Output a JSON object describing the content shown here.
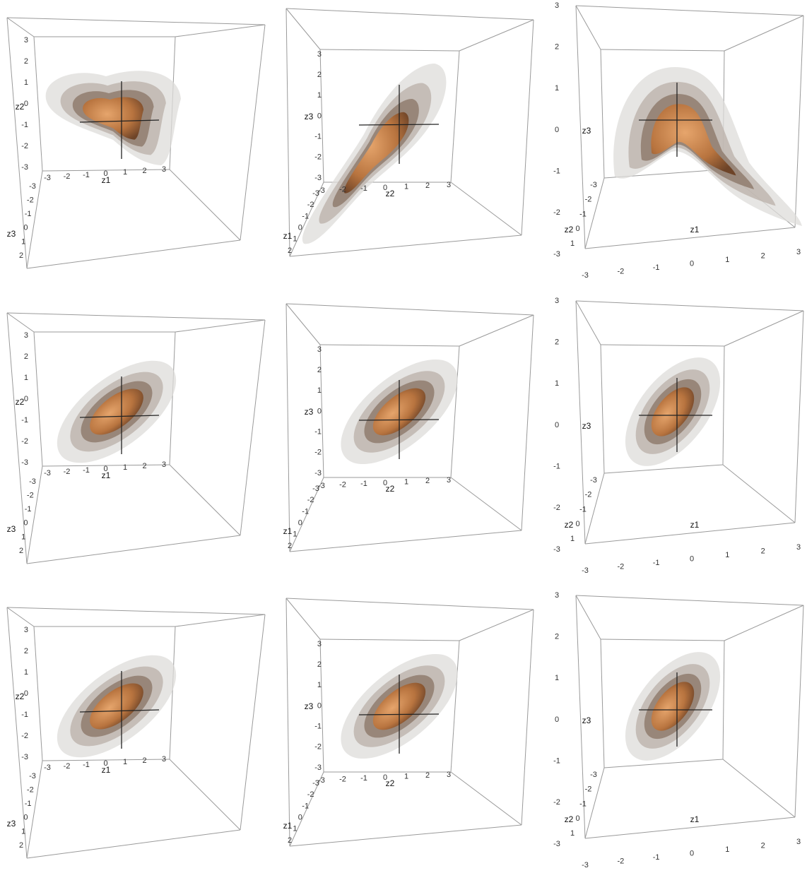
{
  "panels": [
    {
      "vertical_axis": {
        "label": "z2",
        "ticks": [
          -3,
          -2,
          -1,
          0,
          1,
          2,
          3
        ]
      },
      "horizontal_axis": {
        "label": "z1",
        "ticks": [
          -3,
          -2,
          -1,
          0,
          1,
          2,
          3
        ]
      },
      "depth_axis": {
        "label": "z3",
        "ticks": [
          -3,
          -2,
          -1,
          0,
          1,
          2
        ]
      }
    },
    {
      "vertical_axis": {
        "label": "z3",
        "ticks": [
          -3,
          -2,
          -1,
          0,
          1,
          2,
          3
        ]
      },
      "horizontal_axis": {
        "label": "z2",
        "ticks": [
          -3,
          -2,
          -1,
          0,
          1,
          2,
          3
        ]
      },
      "depth_axis": {
        "label": "z1",
        "ticks": [
          -3,
          -2,
          -1,
          0,
          1,
          2
        ]
      }
    },
    {
      "vertical_axis": {
        "label": "z3",
        "ticks": [
          -3,
          -2,
          -1,
          0,
          1,
          2,
          3
        ]
      },
      "horizontal_axis": {
        "label": "z1",
        "ticks": [
          -3,
          -2,
          -1,
          0,
          1,
          2,
          3
        ]
      },
      "depth_axis": {
        "label": "z2",
        "ticks": [
          -3,
          -2,
          -1,
          0,
          1
        ]
      }
    },
    {
      "vertical_axis": {
        "label": "z2",
        "ticks": [
          -3,
          -2,
          -1,
          0,
          1,
          2,
          3
        ]
      },
      "horizontal_axis": {
        "label": "z1",
        "ticks": [
          -3,
          -2,
          -1,
          0,
          1,
          2,
          3
        ]
      },
      "depth_axis": {
        "label": "z3",
        "ticks": [
          -3,
          -2,
          -1,
          0,
          1,
          2
        ]
      }
    },
    {
      "vertical_axis": {
        "label": "z3",
        "ticks": [
          -3,
          -2,
          -1,
          0,
          1,
          2,
          3
        ]
      },
      "horizontal_axis": {
        "label": "z2",
        "ticks": [
          -3,
          -2,
          -1,
          0,
          1,
          2,
          3
        ]
      },
      "depth_axis": {
        "label": "z1",
        "ticks": [
          -3,
          -2,
          -1,
          0,
          1,
          2
        ]
      }
    },
    {
      "vertical_axis": {
        "label": "z3",
        "ticks": [
          -3,
          -2,
          -1,
          0,
          1,
          2,
          3
        ]
      },
      "horizontal_axis": {
        "label": "z1",
        "ticks": [
          -3,
          -2,
          -1,
          0,
          1,
          2,
          3
        ]
      },
      "depth_axis": {
        "label": "z2",
        "ticks": [
          -3,
          -2,
          -1,
          0,
          1
        ]
      }
    },
    {
      "vertical_axis": {
        "label": "z2",
        "ticks": [
          -3,
          -2,
          -1,
          0,
          1,
          2,
          3
        ]
      },
      "horizontal_axis": {
        "label": "z1",
        "ticks": [
          -3,
          -2,
          -1,
          0,
          1,
          2,
          3
        ]
      },
      "depth_axis": {
        "label": "z3",
        "ticks": [
          -3,
          -2,
          -1,
          0,
          1,
          2
        ]
      }
    },
    {
      "vertical_axis": {
        "label": "z3",
        "ticks": [
          -3,
          -2,
          -1,
          0,
          1,
          2,
          3
        ]
      },
      "horizontal_axis": {
        "label": "z2",
        "ticks": [
          -3,
          -2,
          -1,
          0,
          1,
          2,
          3
        ]
      },
      "depth_axis": {
        "label": "z1",
        "ticks": [
          -3,
          -2,
          -1,
          0,
          1,
          2
        ]
      }
    },
    {
      "vertical_axis": {
        "label": "z3",
        "ticks": [
          -3,
          -2,
          -1,
          0,
          1,
          2,
          3
        ]
      },
      "horizontal_axis": {
        "label": "z1",
        "ticks": [
          -3,
          -2,
          -1,
          0,
          1,
          2,
          3
        ]
      },
      "depth_axis": {
        "label": "z2",
        "ticks": [
          -3,
          -2,
          -1,
          0,
          1
        ]
      }
    }
  ]
}
